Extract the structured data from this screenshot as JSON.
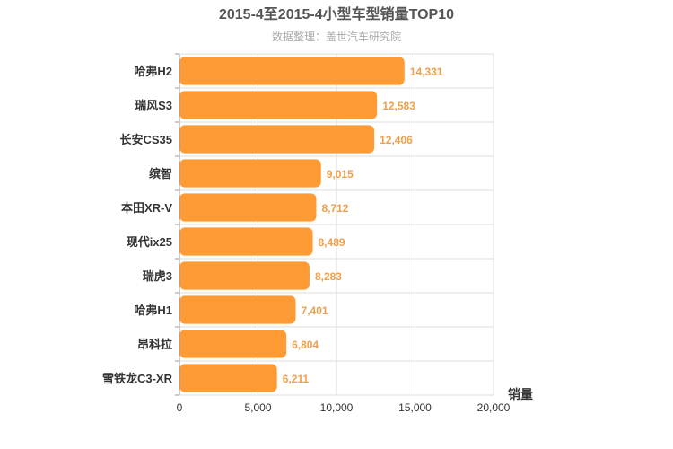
{
  "chart_data": {
    "type": "bar",
    "orientation": "horizontal",
    "title": "2015-4至2015-4小型车型销量TOP10",
    "subtitle": "数据整理：盖世汽车研究院",
    "categories": [
      "哈弗H2",
      "瑞风S3",
      "长安CS35",
      "缤智",
      "本田XR-V",
      "现代ix25",
      "瑞虎3",
      "哈弗H1",
      "昂科拉",
      "雪铁龙C3-XR"
    ],
    "values": [
      14331,
      12583,
      12406,
      9015,
      8712,
      8489,
      8283,
      7401,
      6804,
      6211
    ],
    "value_labels": [
      "14,331",
      "12,583",
      "12,406",
      "9,015",
      "8,712",
      "8,489",
      "8,283",
      "7,401",
      "6,804",
      "6,211"
    ],
    "xlabel": "销量",
    "ylabel": "",
    "xlim": [
      0,
      20000
    ],
    "xticks": [
      0,
      5000,
      10000,
      15000,
      20000
    ],
    "xtick_labels": [
      "0",
      "5,000",
      "10,000",
      "15,000",
      "20,000"
    ],
    "grid": true,
    "legend": "none",
    "colors": {
      "bar": "#ff9b35",
      "value_label": "#f0a04b",
      "grid": "#dddddd",
      "axis": "#999999"
    }
  }
}
